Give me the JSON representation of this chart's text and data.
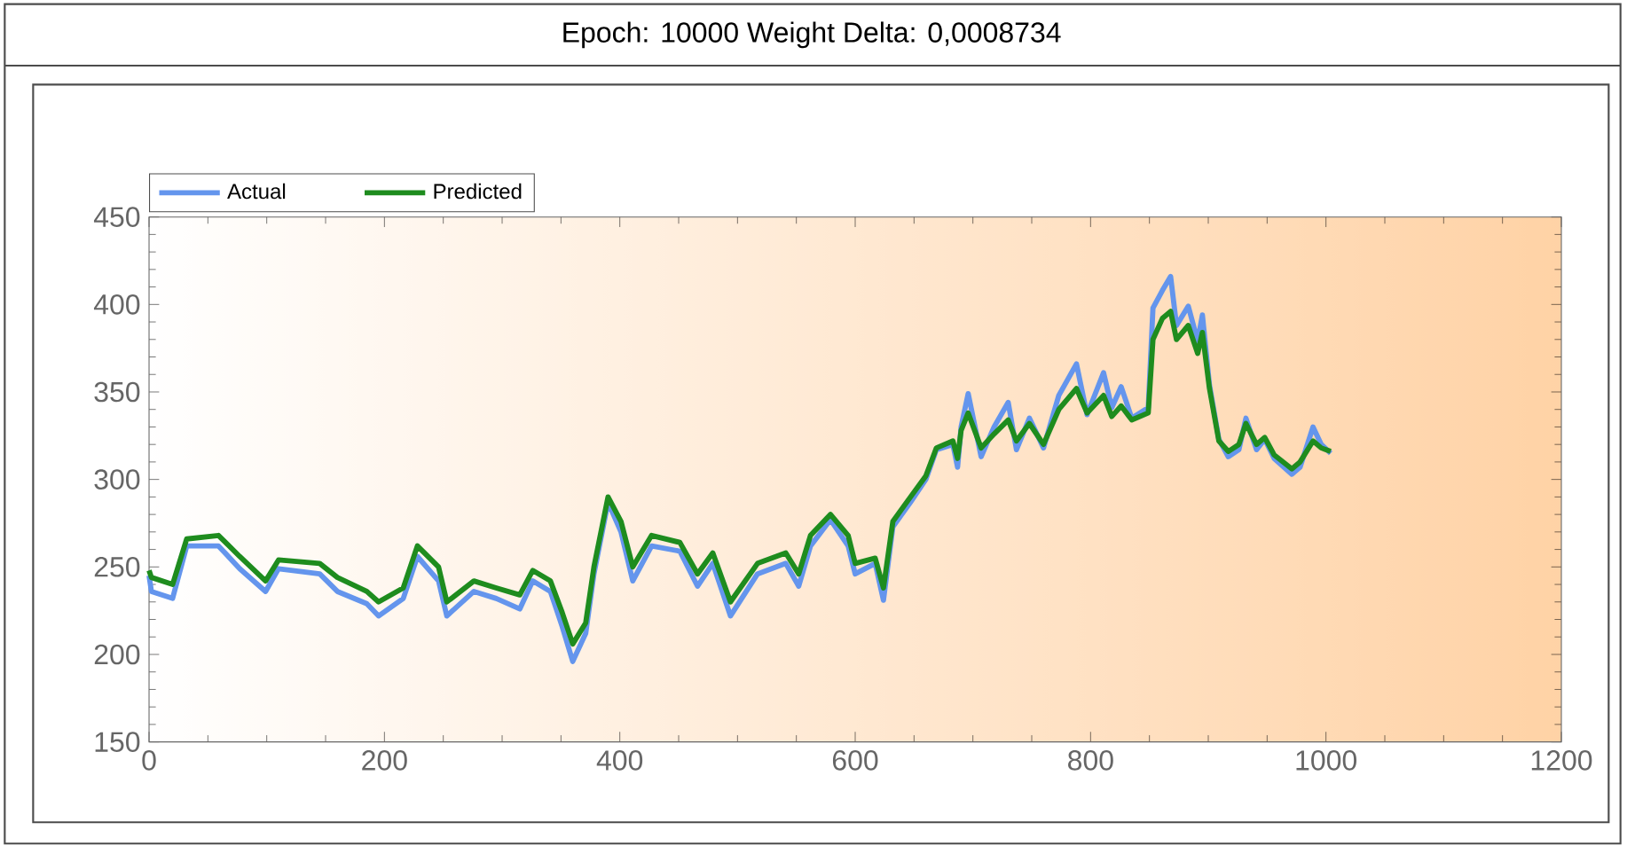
{
  "chart_data": {
    "type": "line",
    "title": "Epoch: 10000   Weight Delta:  0,0008734",
    "xlim": [
      0,
      1200
    ],
    "xticks": [
      0,
      200,
      400,
      600,
      800,
      1000,
      1200
    ],
    "ylim": [
      150,
      450
    ],
    "yticks": [
      150,
      200,
      250,
      300,
      350,
      400,
      450
    ],
    "legend": "top left",
    "marker": "none",
    "line_style": "solid",
    "series": [
      {
        "name": "Actual",
        "color": "#6495ed",
        "x": [
          0,
          2,
          20,
          32,
          59,
          77,
          99,
          110,
          145,
          160,
          185,
          195,
          216,
          228,
          246,
          253,
          276,
          295,
          315,
          326,
          341,
          351,
          360,
          371,
          378,
          390,
          401,
          411,
          427,
          451,
          466,
          479,
          494,
          517,
          541,
          552,
          562,
          579,
          594,
          600,
          617,
          624,
          632,
          647,
          660,
          669,
          683,
          687,
          690,
          696,
          707,
          718,
          730,
          737,
          748,
          760,
          773,
          788,
          797,
          811,
          818,
          826,
          835,
          849,
          853,
          861,
          868,
          873,
          883,
          891,
          895,
          901,
          909,
          917,
          926,
          932,
          941,
          948,
          956,
          971,
          978,
          989,
          996,
          1004
        ],
        "values": [
          245,
          236,
          232,
          262,
          262,
          249,
          236,
          249,
          246,
          236,
          229,
          222,
          232,
          256,
          242,
          222,
          236,
          232,
          226,
          242,
          236,
          216,
          196,
          212,
          246,
          287,
          270,
          242,
          262,
          259,
          239,
          252,
          222,
          246,
          252,
          239,
          262,
          277,
          262,
          246,
          252,
          231,
          273,
          287,
          300,
          317,
          320,
          307,
          330,
          349,
          313,
          330,
          344,
          317,
          335,
          318,
          348,
          366,
          337,
          361,
          341,
          353,
          335,
          341,
          398,
          408,
          416,
          388,
          399,
          379,
          394,
          354,
          323,
          313,
          317,
          335,
          317,
          323,
          312,
          303,
          307,
          330,
          320,
          315
        ]
      },
      {
        "name": "Predicted",
        "color": "#1e8c1e",
        "x": [
          0,
          2,
          20,
          32,
          59,
          77,
          99,
          110,
          145,
          160,
          185,
          195,
          216,
          228,
          246,
          253,
          276,
          295,
          315,
          326,
          341,
          351,
          360,
          371,
          378,
          390,
          401,
          411,
          427,
          451,
          466,
          479,
          494,
          517,
          541,
          552,
          562,
          579,
          594,
          600,
          617,
          624,
          632,
          647,
          660,
          669,
          683,
          687,
          690,
          696,
          707,
          718,
          730,
          737,
          748,
          760,
          773,
          788,
          797,
          811,
          818,
          826,
          835,
          849,
          853,
          861,
          868,
          873,
          883,
          891,
          895,
          901,
          909,
          917,
          926,
          932,
          941,
          948,
          956,
          971,
          978,
          989,
          996,
          1004
        ],
        "values": [
          248,
          244,
          240,
          266,
          268,
          256,
          242,
          254,
          252,
          244,
          236,
          230,
          238,
          262,
          250,
          230,
          242,
          238,
          234,
          248,
          242,
          224,
          206,
          218,
          250,
          290,
          276,
          250,
          268,
          264,
          246,
          258,
          230,
          252,
          258,
          246,
          268,
          280,
          268,
          252,
          255,
          238,
          276,
          290,
          302,
          318,
          322,
          312,
          328,
          338,
          318,
          326,
          334,
          322,
          332,
          320,
          340,
          352,
          338,
          348,
          336,
          342,
          334,
          338,
          380,
          392,
          396,
          380,
          388,
          372,
          384,
          352,
          322,
          316,
          320,
          332,
          320,
          324,
          314,
          306,
          310,
          322,
          318,
          316
        ]
      }
    ]
  }
}
